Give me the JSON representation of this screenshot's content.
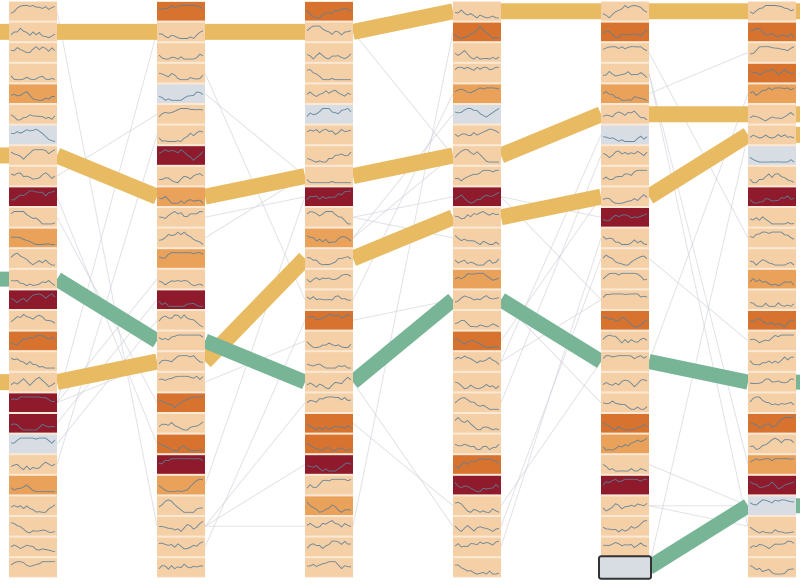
{
  "chart_data": {
    "type": "ranked-timeline-flow",
    "num_columns": 6,
    "num_ranks": 28,
    "colors": {
      "background": "#ffffff",
      "cell_light": "#f5cfa6",
      "cell_mid": "#eaa15a",
      "cell_orange": "#d8732f",
      "cell_dark": "#8e1a2c",
      "cell_gray": "#d8dde3",
      "cell_gap": "#fbe9d6",
      "sparkline": "#5b7f98",
      "flow_gold": "#e8bb62",
      "flow_green": "#78b596",
      "faint_link": "#c9ccd6",
      "outline": "#333333"
    },
    "columns": [
      [
        "light",
        "light",
        "light",
        "light",
        "mid",
        "light",
        "gray",
        "light",
        "light",
        "dark",
        "light",
        "mid",
        "light",
        "light",
        "dark",
        "light",
        "orange",
        "light",
        "light",
        "dark",
        "dark",
        "gray",
        "light",
        "mid",
        "light",
        "light",
        "light",
        "light"
      ],
      [
        "orange",
        "light",
        "light",
        "light",
        "gray",
        "light",
        "light",
        "dark",
        "light",
        "mid",
        "light",
        "light",
        "mid",
        "light",
        "dark",
        "light",
        "light",
        "light",
        "light",
        "orange",
        "light",
        "orange",
        "dark",
        "mid",
        "light",
        "light",
        "light",
        "light"
      ],
      [
        "orange",
        "light",
        "light",
        "light",
        "light",
        "gray",
        "light",
        "light",
        "light",
        "dark",
        "light",
        "mid",
        "light",
        "light",
        "light",
        "orange",
        "light",
        "light",
        "light",
        "light",
        "orange",
        "orange",
        "dark",
        "light",
        "mid",
        "light",
        "light",
        "light"
      ],
      [
        "light",
        "orange",
        "light",
        "light",
        "mid",
        "gray",
        "light",
        "light",
        "light",
        "dark",
        "light",
        "light",
        "light",
        "mid",
        "light",
        "light",
        "orange",
        "light",
        "light",
        "light",
        "light",
        "light",
        "orange",
        "dark",
        "light",
        "light",
        "light",
        "light"
      ],
      [
        "light",
        "orange",
        "light",
        "light",
        "mid",
        "light",
        "gray",
        "light",
        "light",
        "light",
        "dark",
        "light",
        "light",
        "light",
        "light",
        "orange",
        "light",
        "light",
        "light",
        "light",
        "orange",
        "mid",
        "light",
        "dark",
        "light",
        "light",
        "light",
        "gray"
      ],
      [
        "light",
        "orange",
        "light",
        "orange",
        "mid",
        "light",
        "light",
        "gray",
        "light",
        "dark",
        "light",
        "light",
        "light",
        "mid",
        "light",
        "orange",
        "light",
        "light",
        "light",
        "light",
        "orange",
        "light",
        "mid",
        "dark",
        "gray",
        "light",
        "light",
        "light"
      ]
    ],
    "highlighted_flows": [
      {
        "color": "gold",
        "ranks": [
          1,
          1,
          1,
          0,
          0,
          0
        ]
      },
      {
        "color": "gold",
        "ranks": [
          7,
          9,
          8,
          7,
          5,
          5
        ]
      },
      {
        "color": "gold",
        "ranks": [
          18,
          17,
          12,
          10,
          9,
          6
        ]
      },
      {
        "color": "green",
        "ranks": [
          13,
          16,
          18,
          14,
          17,
          18
        ]
      },
      {
        "color": "green",
        "ranks": [
          null,
          null,
          null,
          null,
          27,
          24
        ]
      }
    ],
    "selected_cell": {
      "column": 4,
      "rank": 27
    }
  }
}
